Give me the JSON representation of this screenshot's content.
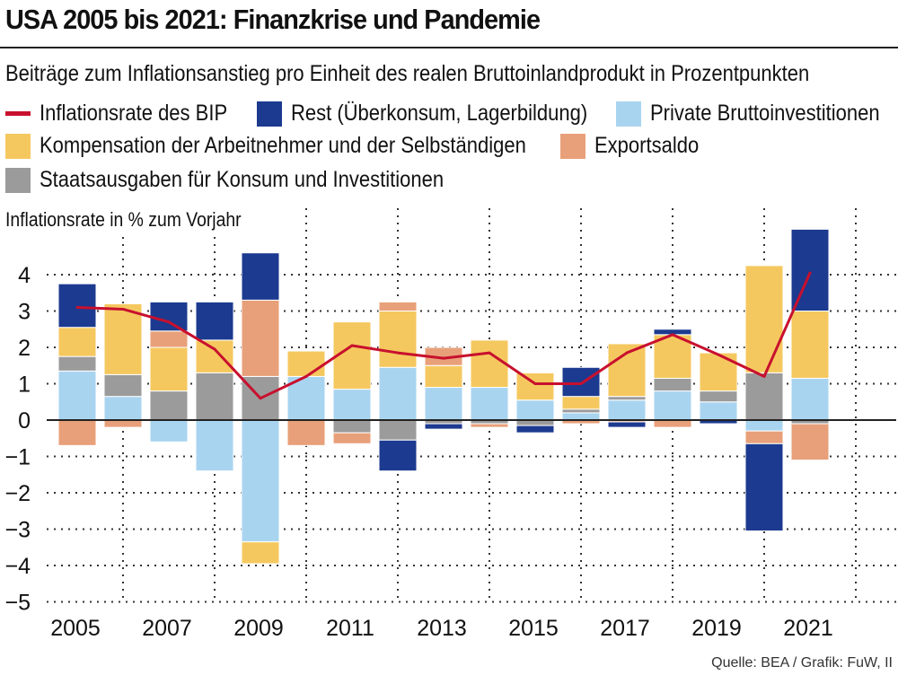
{
  "title": "USA 2005 bis 2021: Finanzkrise und Pandemie",
  "subtitle": "Beiträge zum Inflationsanstieg pro Einheit des realen Bruttoinlandprodukt in Prozentpunkten",
  "legend": {
    "inflation": "Inflationsrate des BIP",
    "rest": "Rest (Überkonsum, Lagerbildung)",
    "invest": "Private Bruttoinvestitionen",
    "comp": "Kompensation der Arbeitnehmer und der Selbständigen",
    "export": "Exportsaldo",
    "gov": "Staatsausgaben für Konsum und Investitionen"
  },
  "ylabel": "Inflationsrate in % zum Vorjahr",
  "source": "Quelle: BEA / Grafik: FuW, II",
  "colors": {
    "inflation": "#c8102e",
    "rest": "#1c3a8f",
    "invest": "#a9d4f0",
    "comp": "#f5c85f",
    "export": "#e8a07a",
    "gov": "#9b9b9b"
  },
  "chart_data": {
    "type": "bar",
    "stacked": true,
    "x": [
      2005,
      2006,
      2007,
      2008,
      2009,
      2010,
      2011,
      2012,
      2013,
      2014,
      2015,
      2016,
      2017,
      2018,
      2019,
      2020,
      2021
    ],
    "x_tick_labels": [
      "2005",
      "2007",
      "2009",
      "2011",
      "2013",
      "2015",
      "2017",
      "2019",
      "2021"
    ],
    "ylim": [
      -5,
      5
    ],
    "y_ticks": [
      -5,
      -4,
      -3,
      -2,
      -1,
      0,
      1,
      2,
      3,
      4
    ],
    "grid": "dotted",
    "series": [
      {
        "name": "Private Bruttoinvestitionen",
        "key": "invest",
        "values": [
          1.35,
          0.65,
          -0.6,
          -1.4,
          -3.35,
          1.2,
          0.85,
          1.45,
          0.9,
          0.9,
          0.55,
          0.2,
          0.55,
          0.8,
          0.5,
          -0.3,
          1.15
        ]
      },
      {
        "name": "Staatsausgaben für Konsum und Investitionen",
        "key": "gov",
        "values": [
          0.4,
          0.6,
          0.8,
          1.3,
          1.2,
          0.0,
          -0.35,
          -0.55,
          -0.1,
          -0.1,
          -0.15,
          0.1,
          0.1,
          0.35,
          0.3,
          1.3,
          -0.1
        ]
      },
      {
        "name": "Kompensation der Arbeitnehmer und der Selbständigen",
        "key": "comp",
        "values": [
          0.8,
          1.95,
          1.2,
          0.9,
          -0.6,
          0.7,
          1.85,
          1.55,
          0.6,
          1.3,
          0.75,
          0.35,
          1.45,
          1.2,
          1.05,
          2.95,
          1.85
        ]
      },
      {
        "name": "Exportsaldo",
        "key": "export",
        "values": [
          -0.7,
          -0.2,
          0.45,
          0.0,
          2.1,
          -0.7,
          -0.3,
          0.25,
          0.5,
          -0.1,
          0.0,
          -0.1,
          -0.05,
          -0.2,
          0.0,
          -0.35,
          -1.0
        ]
      },
      {
        "name": "Rest (Überkonsum, Lagerbildung)",
        "key": "rest",
        "values": [
          1.2,
          0.0,
          0.8,
          1.05,
          1.3,
          0.0,
          0.0,
          -0.85,
          -0.15,
          0.0,
          -0.2,
          0.8,
          -0.15,
          0.15,
          -0.1,
          -2.4,
          2.25
        ]
      }
    ],
    "line": {
      "name": "Inflationsrate des BIP",
      "key": "inflation",
      "values": [
        3.1,
        3.05,
        2.7,
        1.95,
        0.6,
        1.2,
        2.05,
        1.85,
        1.7,
        1.85,
        1.0,
        1.0,
        1.85,
        2.35,
        1.8,
        1.2,
        4.05
      ]
    }
  }
}
